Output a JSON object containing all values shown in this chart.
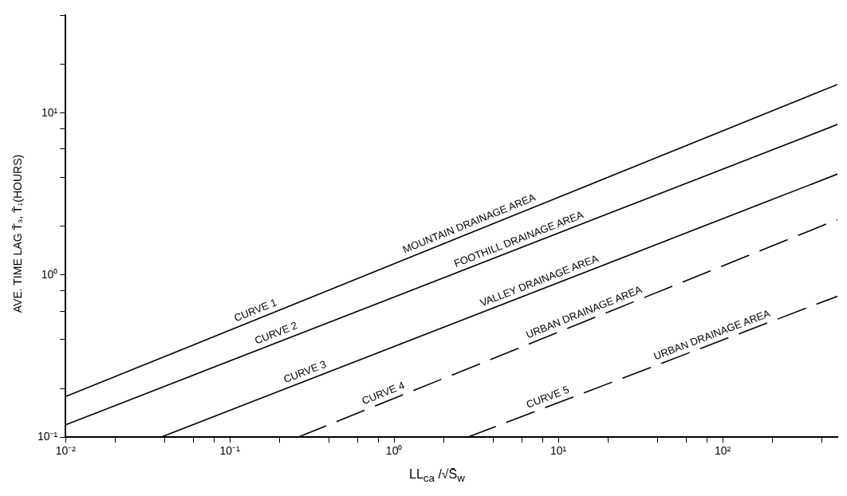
{
  "chart_data": {
    "type": "line",
    "xlabel": "LL$_{ca}$ /√S̄$_{w}$",
    "ylabel": "AVE. TIME LAG T̄₃, T̄₁(HOURS)",
    "log": "xy",
    "grid": false,
    "legend": false,
    "marker": "none",
    "xlim": [
      0.01,
      500
    ],
    "ylim": [
      0.1,
      40
    ],
    "xticks": [
      {
        "value": 0.01,
        "label": "10⁻²"
      },
      {
        "value": 0.02,
        "label": null
      },
      {
        "value": 0.04,
        "label": null
      },
      {
        "value": 0.06,
        "label": null
      },
      {
        "value": 0.08,
        "label": null
      },
      {
        "value": 0.1,
        "label": "10⁻¹"
      },
      {
        "value": 0.2,
        "label": null
      },
      {
        "value": 0.4,
        "label": null
      },
      {
        "value": 0.6,
        "label": null
      },
      {
        "value": 0.8,
        "label": null
      },
      {
        "value": 1,
        "label": "10⁰"
      },
      {
        "value": 2,
        "label": null
      },
      {
        "value": 4,
        "label": null
      },
      {
        "value": 6,
        "label": null
      },
      {
        "value": 8,
        "label": null
      },
      {
        "value": 10,
        "label": "10¹"
      },
      {
        "value": 20,
        "label": null
      },
      {
        "value": 40,
        "label": null
      },
      {
        "value": 60,
        "label": null
      },
      {
        "value": 80,
        "label": null
      },
      {
        "value": 100,
        "label": "10²"
      },
      {
        "value": 200,
        "label": null
      },
      {
        "value": 400,
        "label": null
      }
    ],
    "yticks": [
      {
        "value": 0.1,
        "label": "10⁻¹"
      },
      {
        "value": 0.2,
        "label": null
      },
      {
        "value": 0.4,
        "label": null
      },
      {
        "value": 0.6,
        "label": null
      },
      {
        "value": 0.8,
        "label": null
      },
      {
        "value": 1,
        "label": "10⁰"
      },
      {
        "value": 2,
        "label": null
      },
      {
        "value": 4,
        "label": null
      },
      {
        "value": 6,
        "label": null
      },
      {
        "value": 8,
        "label": null
      },
      {
        "value": 10,
        "label": "10¹"
      },
      {
        "value": 20,
        "label": null
      },
      {
        "value": 40,
        "label": null
      }
    ],
    "series": [
      {
        "color": "#000000",
        "line_style": "solid",
        "x": [
          0.01,
          500
        ],
        "values": [
          0.178,
          15
        ]
      },
      {
        "color": "#000000",
        "line_style": "solid",
        "x": [
          0.01,
          500
        ],
        "values": [
          0.119,
          8.5
        ]
      },
      {
        "color": "#000000",
        "line_style": "solid",
        "x": [
          0.038,
          500
        ],
        "values": [
          0.1,
          4.2
        ]
      },
      {
        "color": "#000000",
        "line_style": "dashed",
        "x": [
          0.26,
          500
        ],
        "values": [
          0.1,
          2.2
        ]
      },
      {
        "color": "#000000",
        "line_style": "dashed",
        "x": [
          2.8,
          500
        ],
        "values": [
          0.1,
          0.74
        ]
      }
    ],
    "annotations": [
      {
        "text": "CURVE 1",
        "x": 0.15,
        "y": 0.54
      },
      {
        "text": "MOUNTAIN DRAINAGE AREA",
        "x": 3,
        "y": 1.85
      },
      {
        "text": "CURVE 2",
        "x": 0.2,
        "y": 0.39
      },
      {
        "text": "FOOTHILL DRAINAGE AREA",
        "x": 6,
        "y": 1.48
      },
      {
        "text": "CURVE 3",
        "x": 0.3,
        "y": 0.225
      },
      {
        "text": "VALLEY DRAINAGE AREA",
        "x": 8,
        "y": 0.82
      },
      {
        "text": "CURVE 4",
        "x": 0.9,
        "y": 0.166
      },
      {
        "text": "URBAN DRAINAGE AREA",
        "x": 15,
        "y": 0.525
      },
      {
        "text": "CURVE 5",
        "x": 9,
        "y": 0.157
      },
      {
        "text": "URBAN DRAINAGE AREA",
        "x": 90,
        "y": 0.38
      }
    ]
  }
}
